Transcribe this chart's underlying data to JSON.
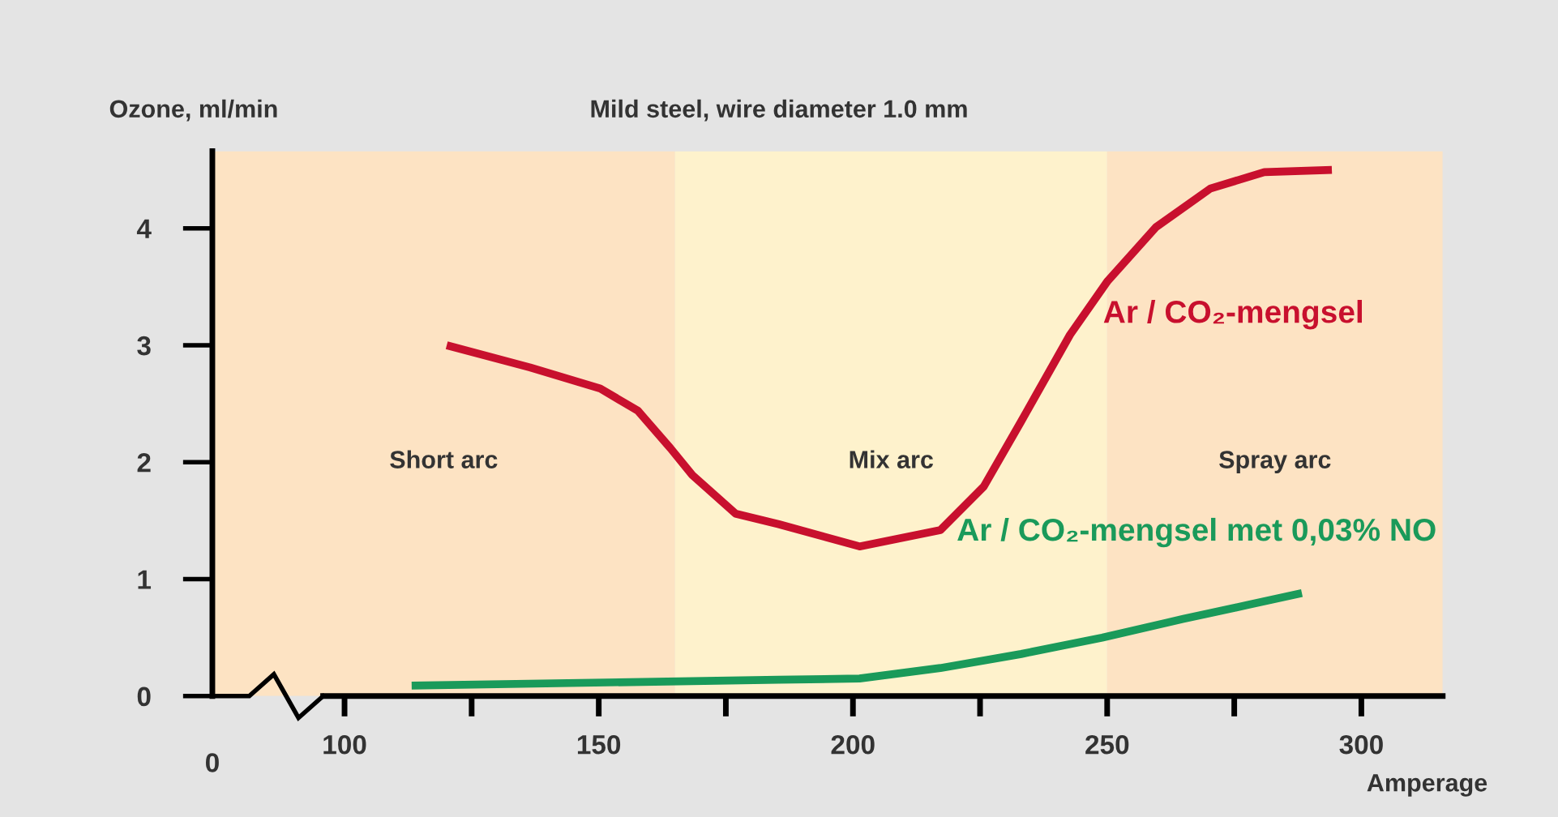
{
  "chart_data": {
    "type": "line",
    "title": "Mild steel, wire diameter 1.0 mm",
    "ylabel": "Ozone, ml/min",
    "xlabel": "Amperage",
    "xlim": [
      74,
      316
    ],
    "annotations": [
      "0"
    ],
    "xticks": [
      100,
      {
        "value": 125,
        "label": null
      },
      150,
      {
        "value": 175,
        "label": null
      },
      200,
      {
        "value": 225,
        "label": null
      },
      250,
      {
        "value": 275,
        "label": null
      },
      300
    ],
    "ylim": [
      0,
      4.66
    ],
    "yticks": [
      0,
      1,
      2,
      3,
      4
    ],
    "grid": false,
    "legend": false,
    "marker": "none",
    "line_style": "solid",
    "bands": [
      {
        "axis": "x",
        "from": 74,
        "to": 165,
        "label": "Short arc",
        "color": "#fde3c3"
      },
      {
        "axis": "x",
        "from": 165,
        "to": 250,
        "label": "Mix arc",
        "color": "#fef2cc"
      },
      {
        "axis": "x",
        "from": 250,
        "to": 316,
        "label": "Spray arc",
        "color": "#fde3c3"
      }
    ],
    "series": [
      {
        "name": "Ar / CO₂-mengsel",
        "color": "#c8102e",
        "x": [
          120.1,
          136.5,
          150.3,
          157.7,
          164.1,
          168.4,
          176.9,
          185.4,
          201.3,
          217.2,
          225.7,
          233.1,
          242.7,
          250.1,
          259.6,
          270.3,
          280.9,
          294.2
        ],
        "values": [
          3.0,
          2.81,
          2.63,
          2.44,
          2.12,
          1.89,
          1.56,
          1.47,
          1.28,
          1.42,
          1.79,
          2.35,
          3.09,
          3.55,
          4.01,
          4.34,
          4.48,
          4.5
        ]
      },
      {
        "name": "Ar / CO₂-mengsel met 0,03% NO",
        "color": "#1a9a5a",
        "x": [
          113.2,
          185.4,
          201.3,
          217.2,
          233.1,
          249.0,
          265.0,
          277.7,
          288.3
        ],
        "values": [
          0.09,
          0.14,
          0.15,
          0.24,
          0.36,
          0.5,
          0.66,
          0.78,
          0.88
        ]
      }
    ]
  }
}
